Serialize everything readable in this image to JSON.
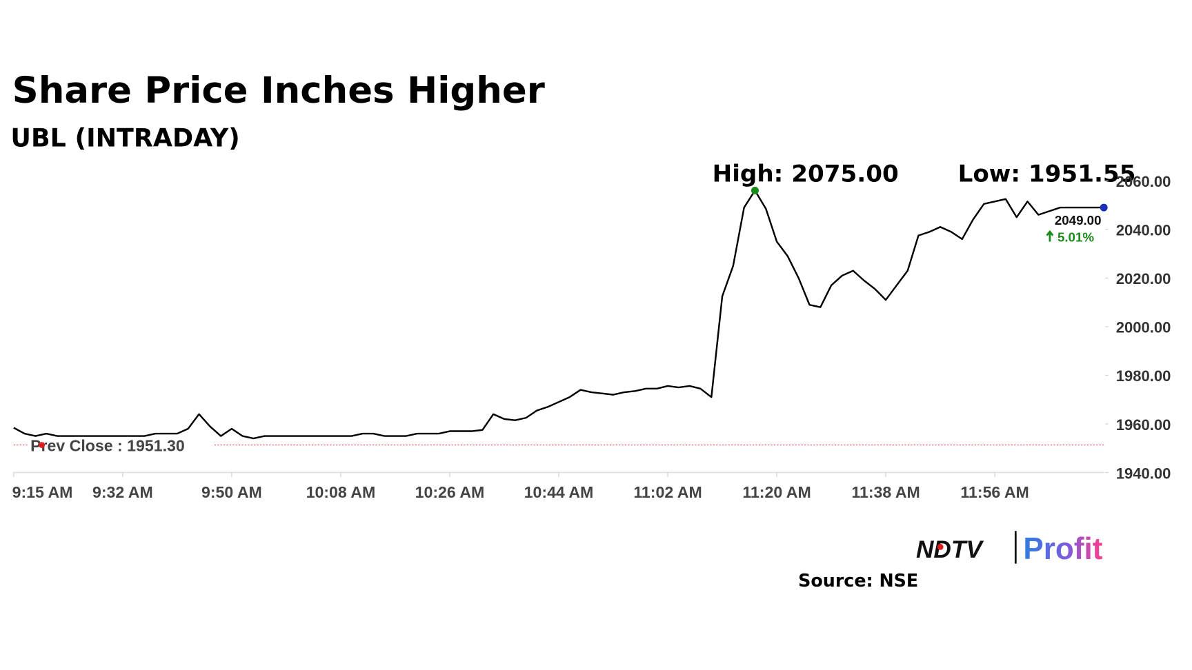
{
  "chart_data": {
    "type": "line",
    "title": "Share Price Inches Higher",
    "subtitle": "UBL (INTRADAY)",
    "categories": [
      "9:15 AM",
      null,
      null,
      null,
      null,
      null,
      null,
      null,
      null,
      null,
      "9:32 AM",
      null,
      null,
      null,
      null,
      null,
      null,
      null,
      null,
      null,
      "9:50 AM",
      null,
      null,
      null,
      null,
      null,
      null,
      null,
      null,
      null,
      "10:08 AM",
      null,
      null,
      null,
      null,
      null,
      null,
      null,
      null,
      null,
      "10:26 AM",
      null,
      null,
      null,
      null,
      null,
      null,
      null,
      null,
      null,
      "10:44 AM",
      null,
      null,
      null,
      null,
      null,
      null,
      null,
      null,
      null,
      "11:02 AM",
      null,
      null,
      null,
      null,
      null,
      null,
      null,
      null,
      null,
      "11:20 AM",
      null,
      null,
      null,
      null,
      null,
      null,
      null,
      null,
      null,
      "11:38 AM",
      null,
      null,
      null,
      null,
      null,
      null,
      null,
      null,
      null,
      "11:56 AM",
      null,
      null,
      null,
      null,
      null,
      null,
      null,
      null,
      null,
      null
    ],
    "values": [
      1958.4,
      1956,
      1955,
      1956,
      1955,
      1955,
      1955,
      1955,
      1955,
      1955,
      1955,
      1955,
      1955,
      1956,
      1956,
      1956,
      1958,
      1964,
      1959,
      1955,
      1958,
      1955,
      1954,
      1955,
      1955,
      1955,
      1955,
      1955,
      1955,
      1955,
      1955,
      1955,
      1956,
      1956,
      1955,
      1955,
      1955,
      1956,
      1956,
      1956,
      1957,
      1957,
      1957,
      1957.5,
      1964,
      1962,
      1961.5,
      1962.5,
      1965.5,
      1967,
      1969,
      1971,
      1974,
      1973,
      1972.5,
      1972,
      1973,
      1973.5,
      1974.5,
      1974.5,
      1975.6,
      1975,
      1975.6,
      1974.5,
      1971,
      2012.5,
      2025,
      2049,
      2056,
      2048.5,
      2035,
      2029,
      2020,
      2009,
      2008,
      2017,
      2021,
      2023,
      2019,
      2015.5,
      2011,
      2017,
      2023,
      2037.5,
      2039,
      2041,
      2039,
      2036,
      2044,
      2050.5,
      2051.5,
      2052.5,
      2045,
      2051.5,
      2046,
      2047.5,
      2049,
      2049,
      2049,
      2049,
      2049
    ],
    "color": "#000000",
    "ylim": [
      1940,
      2060
    ],
    "yticks": [
      {
        "value": 1940,
        "label": "1940.00"
      },
      {
        "value": 1960,
        "label": "1960.00"
      },
      {
        "value": 1980,
        "label": "1980.00"
      },
      {
        "value": 2000,
        "label": "2000.00"
      },
      {
        "value": 2020,
        "label": "2020.00"
      },
      {
        "value": 2040,
        "label": "2040.00"
      },
      {
        "value": 2060,
        "label": "2060.00"
      }
    ],
    "high_label": "High: 2075.00",
    "low_label": "Low: 1951.55",
    "prev_close": {
      "value": 1951.3,
      "label": "Prev Close : 1951.30"
    },
    "last_price_label": "2049.00",
    "change_label": "5.01%",
    "source": "Source: NSE",
    "logo_left": "NDTV",
    "logo_right": "Profit"
  }
}
